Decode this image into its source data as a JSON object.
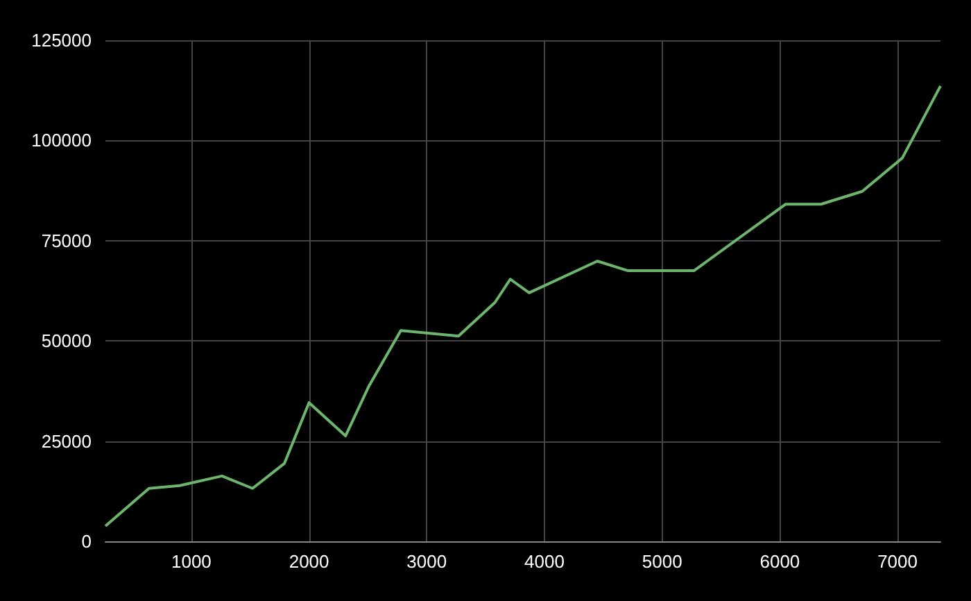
{
  "chart_data": {
    "type": "line",
    "x": [
      270,
      640,
      900,
      1260,
      1520,
      1790,
      2000,
      2310,
      2510,
      2780,
      3270,
      3580,
      3710,
      3870,
      4450,
      4710,
      5270,
      6050,
      6350,
      6700,
      7040,
      7365
    ],
    "series": [
      {
        "color": "#6db56d",
        "values": [
          3800,
          13200,
          13900,
          16300,
          13200,
          19400,
          34600,
          26300,
          38800,
          52600,
          51200,
          59600,
          65400,
          62000,
          69900,
          67500,
          67500,
          84100,
          84100,
          87300,
          95600,
          113600
        ]
      }
    ],
    "xlim": [
      270,
      7365
    ],
    "xticks": [
      1000,
      2000,
      3000,
      4000,
      5000,
      6000,
      7000
    ],
    "ylim": [
      0,
      125000
    ],
    "yticks": [
      0,
      25000,
      50000,
      75000,
      100000,
      125000
    ],
    "grid": true,
    "marker": "none",
    "line_style": "solid"
  }
}
